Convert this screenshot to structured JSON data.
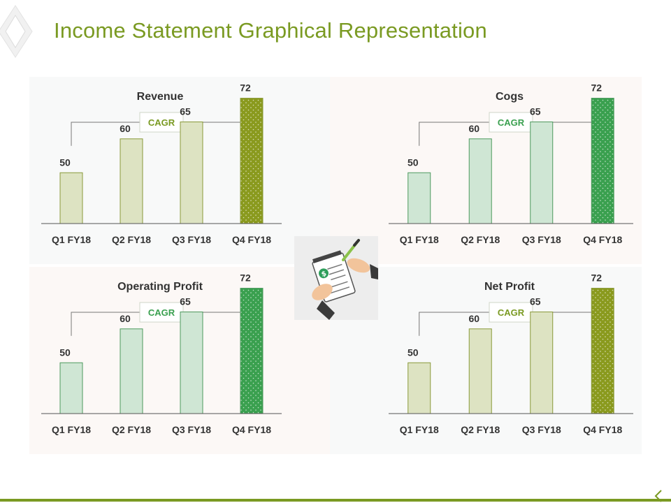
{
  "slide": {
    "title": "Income Statement Graphical Representation"
  },
  "colors": {
    "accent_green": "#7a9a22",
    "olive_light": "#dde3c2",
    "olive_dark": "#8a9a1e",
    "mint_light": "#cfe6d4",
    "mint_dark": "#3aa04f",
    "panel_warm": "#fcf8f6",
    "panel_cool": "#f8f9f9"
  },
  "icons": {
    "center_illustration": "hand-writing-checklist-icon",
    "corner_marker": "chevron-corner-icon"
  },
  "chart_data": [
    {
      "type": "bar",
      "title": "Revenue",
      "cagr_label": "CAGR",
      "categories": [
        "Q1 FY18",
        "Q2 FY18",
        "Q3 FY18",
        "Q4 FY18"
      ],
      "values": [
        50,
        60,
        65,
        72
      ],
      "ylim": [
        0,
        100
      ],
      "grid": false,
      "theme": "olive"
    },
    {
      "type": "bar",
      "title": "Cogs",
      "cagr_label": "CAGR",
      "categories": [
        "Q1 FY18",
        "Q2 FY18",
        "Q3 FY18",
        "Q4 FY18"
      ],
      "values": [
        50,
        60,
        65,
        72
      ],
      "ylim": [
        0,
        100
      ],
      "grid": false,
      "theme": "mint"
    },
    {
      "type": "bar",
      "title": "Operating Profit",
      "cagr_label": "CAGR",
      "categories": [
        "Q1 FY18",
        "Q2 FY18",
        "Q3 FY18",
        "Q4 FY18"
      ],
      "values": [
        50,
        60,
        65,
        72
      ],
      "ylim": [
        0,
        100
      ],
      "grid": false,
      "theme": "mint"
    },
    {
      "type": "bar",
      "title": "Net Profit",
      "cagr_label": "CAGR",
      "categories": [
        "Q1 FY18",
        "Q2 FY18",
        "Q3 FY18",
        "Q4 FY18"
      ],
      "values": [
        50,
        60,
        65,
        72
      ],
      "ylim": [
        0,
        100
      ],
      "grid": false,
      "theme": "olive"
    }
  ]
}
